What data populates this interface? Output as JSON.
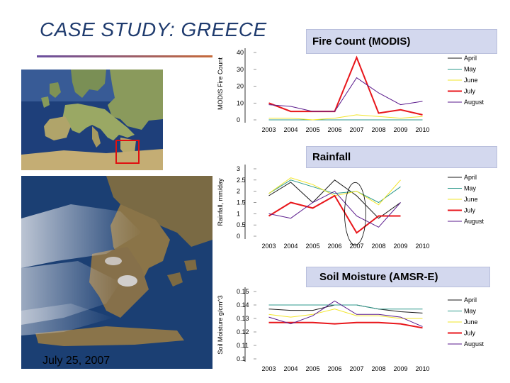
{
  "title": "CASE STUDY: GREECE",
  "caption": "July 25, 2007",
  "panels": [
    {
      "header": "Fire Count (MODIS)"
    },
    {
      "header": "Rainfall"
    },
    {
      "header": "Soil Moisture (AMSR-E)"
    }
  ],
  "chart_data": [
    {
      "type": "line",
      "ylabel": "MODIS Fire Count",
      "x": [
        "2003",
        "2004",
        "2005",
        "2006",
        "2007",
        "2008",
        "2009",
        "2010"
      ],
      "yticks": [
        "0",
        "10",
        "20",
        "30",
        "40"
      ],
      "ylim": [
        0,
        40
      ],
      "legend_position": "right",
      "series": [
        {
          "name": "April",
          "color": "#1a1a1a",
          "values": [
            0,
            0,
            0,
            0,
            0,
            0,
            0,
            0
          ]
        },
        {
          "name": "May",
          "color": "#2e9a8c",
          "values": [
            0,
            0,
            0,
            0,
            0,
            0,
            0,
            0
          ]
        },
        {
          "name": "June",
          "color": "#f2e62a",
          "values": [
            1,
            1,
            0,
            1,
            3,
            2,
            1,
            2
          ]
        },
        {
          "name": "July",
          "color": "#e8161b",
          "values": [
            10,
            5,
            5,
            5,
            37,
            4,
            6,
            3
          ]
        },
        {
          "name": "August",
          "color": "#5a1a8c",
          "values": [
            9,
            8,
            5,
            5,
            25,
            16,
            9,
            11
          ]
        }
      ]
    },
    {
      "type": "line",
      "ylabel": "Rainfall, mm/day",
      "x": [
        "2003",
        "2004",
        "2005",
        "2006",
        "2007",
        "2008",
        "2009",
        "2010"
      ],
      "yticks": [
        "0",
        "0.5",
        "1",
        "1.5",
        "2",
        "2.5",
        "3"
      ],
      "ylim": [
        0,
        3
      ],
      "legend_position": "right",
      "annotation": "ellipse around July 2007",
      "series": [
        {
          "name": "April",
          "color": "#1a1a1a",
          "values": [
            1.8,
            2.4,
            1.5,
            2.5,
            1.8,
            0.8,
            1.5,
            null
          ]
        },
        {
          "name": "May",
          "color": "#2e9a8c",
          "values": [
            1.9,
            2.5,
            2.2,
            1.9,
            2.0,
            1.5,
            2.2,
            null
          ]
        },
        {
          "name": "June",
          "color": "#f2e62a",
          "values": [
            1.9,
            2.6,
            2.3,
            1.8,
            2.0,
            1.4,
            2.5,
            null
          ]
        },
        {
          "name": "July",
          "color": "#e8161b",
          "values": [
            0.9,
            1.5,
            1.25,
            1.8,
            0.15,
            0.9,
            0.9,
            null
          ]
        },
        {
          "name": "August",
          "color": "#5a1a8c",
          "values": [
            1.0,
            0.8,
            1.5,
            2.0,
            0.9,
            0.4,
            1.5,
            null
          ]
        }
      ]
    },
    {
      "type": "line",
      "ylabel": "Soil Moisture g/cm^3",
      "x": [
        "2003",
        "2004",
        "2005",
        "2006",
        "2007",
        "2008",
        "2009",
        "2010"
      ],
      "yticks": [
        "0.1",
        "0.11",
        "0.12",
        "0.13",
        "0.14",
        "0.15"
      ],
      "ylim": [
        0.1,
        0.15
      ],
      "legend_position": "right",
      "series": [
        {
          "name": "April",
          "color": "#1a1a1a",
          "values": [
            0.137,
            0.136,
            0.136,
            0.14,
            0.14,
            0.137,
            0.135,
            0.134
          ]
        },
        {
          "name": "May",
          "color": "#2e9a8c",
          "values": [
            0.14,
            0.14,
            0.14,
            0.14,
            0.14,
            0.137,
            0.137,
            0.137
          ]
        },
        {
          "name": "June",
          "color": "#f2e62a",
          "values": [
            0.133,
            0.131,
            0.133,
            0.137,
            0.132,
            0.132,
            0.13,
            0.13
          ]
        },
        {
          "name": "July",
          "color": "#e8161b",
          "values": [
            0.127,
            0.127,
            0.127,
            0.126,
            0.127,
            0.127,
            0.126,
            0.123
          ]
        },
        {
          "name": "August",
          "color": "#5a1a8c",
          "values": [
            0.131,
            0.126,
            0.132,
            0.143,
            0.133,
            0.133,
            0.131,
            0.124
          ]
        }
      ]
    }
  ]
}
